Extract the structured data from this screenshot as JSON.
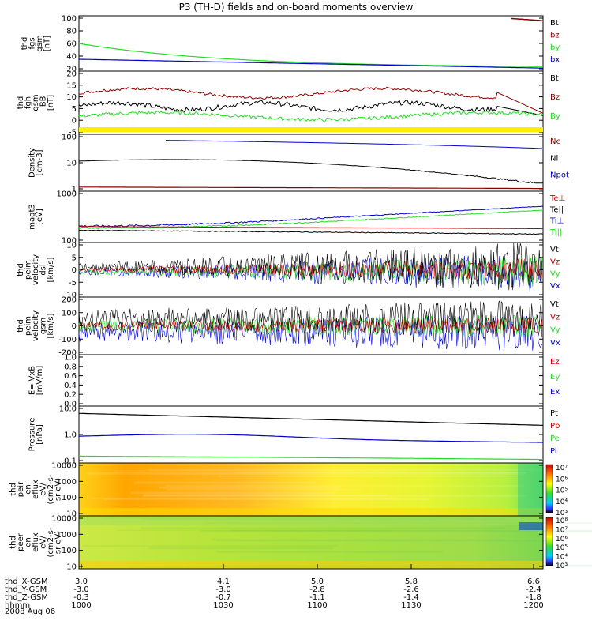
{
  "title": "P3 (TH-D) fields and on-board moments overview",
  "colors": {
    "black": "#000000",
    "red": "#c00000",
    "dred": "#8b0000",
    "green": "#22dd22",
    "blue": "#0000cc",
    "yellow": "#ffee00"
  },
  "panels": [
    {
      "id": "fgs",
      "ylabel": [
        "thd",
        "fgs",
        "gsm",
        "[nT]"
      ],
      "ticks": [
        "100",
        "80",
        "60",
        "40",
        "20"
      ],
      "legend": [
        {
          "t": "Bt",
          "c": "black"
        },
        {
          "t": "bz",
          "c": "dred"
        },
        {
          "t": "by",
          "c": "green"
        },
        {
          "t": "bx",
          "c": "blue"
        }
      ]
    },
    {
      "id": "fgh",
      "ylabel": [
        "thd",
        "fgh",
        "gsm",
        "-BB",
        "[nT]"
      ],
      "ticks": [
        "20",
        "15",
        "10",
        "5",
        "0",
        "-5"
      ],
      "legend": [
        {
          "t": "Bt",
          "c": "black"
        },
        {
          "t": "Bz",
          "c": "dred"
        },
        {
          "t": "By",
          "c": "green"
        }
      ]
    },
    {
      "id": "dens",
      "ylabel": [
        "Density",
        "[cm-3]"
      ],
      "ticks": [
        "100",
        "10",
        "1"
      ],
      "legend": [
        {
          "t": "Ne",
          "c": "dred"
        },
        {
          "t": "Ni",
          "c": "black"
        },
        {
          "t": "Npot",
          "c": "blue"
        }
      ]
    },
    {
      "id": "temp",
      "ylabel": [
        "magt3",
        "[eV]"
      ],
      "ticks": [
        "1000",
        "100"
      ],
      "legend": [
        {
          "t": "Te⊥",
          "c": "red"
        },
        {
          "t": "Te||",
          "c": "black"
        },
        {
          "t": "Ti⊥",
          "c": "blue"
        },
        {
          "t": "Ti||",
          "c": "green"
        }
      ]
    },
    {
      "id": "velE",
      "ylabel": [
        "thd",
        "peim",
        "velocity",
        "dsl",
        "[km/s]"
      ],
      "ticks": [
        "10",
        "5",
        "0",
        "-5",
        "-10"
      ],
      "legend": [
        {
          "t": "Vt",
          "c": "black"
        },
        {
          "t": "Vz",
          "c": "red"
        },
        {
          "t": "Vy",
          "c": "green"
        },
        {
          "t": "Vx",
          "c": "blue"
        }
      ]
    },
    {
      "id": "velI",
      "ylabel": [
        "thd",
        "peim",
        "velocity",
        "gsm",
        "[km/s]"
      ],
      "ticks": [
        "200",
        "100",
        "0",
        "-100",
        "-200"
      ],
      "legend": [
        {
          "t": "Vt",
          "c": "black"
        },
        {
          "t": "Vz",
          "c": "red"
        },
        {
          "t": "Vy",
          "c": "green"
        },
        {
          "t": "Vx",
          "c": "blue"
        }
      ]
    },
    {
      "id": "efld",
      "ylabel": [
        "E=-VxB",
        "[mV/m]"
      ],
      "ticks": [
        "1.0",
        "0.8",
        "0.6",
        "0.4",
        "0.2",
        "0.0"
      ],
      "legend": [
        {
          "t": "Ez",
          "c": "red"
        },
        {
          "t": "Ey",
          "c": "green"
        },
        {
          "t": "Ex",
          "c": "blue"
        }
      ]
    },
    {
      "id": "press",
      "ylabel": [
        "Pressure",
        "[nPa]"
      ],
      "ticks": [
        "10.0",
        "1.0",
        "0.1"
      ],
      "legend": [
        {
          "t": "Pt",
          "c": "black"
        },
        {
          "t": "Pb",
          "c": "red"
        },
        {
          "t": "Pe",
          "c": "green"
        },
        {
          "t": "Pi",
          "c": "blue"
        }
      ]
    },
    {
      "id": "ispec",
      "ylabel": [
        "thd",
        "peir",
        "en",
        "eflux",
        "eV/",
        "(cm2-s-",
        "sr-eV)"
      ],
      "ticks": [
        "10000",
        "1000",
        "100",
        "10"
      ],
      "colorbar": [
        "10⁷",
        "10⁶",
        "10⁵",
        "10⁴",
        "10³"
      ]
    },
    {
      "id": "espec",
      "ylabel": [
        "thd",
        "peer",
        "en",
        "eflux",
        "eV/",
        "(cm2-s-",
        "sr-eV)"
      ],
      "ticks": [
        "10000",
        "1000",
        "100",
        "10"
      ],
      "colorbar": [
        "10⁸",
        "10⁷",
        "10⁶",
        "10⁵",
        "10⁴",
        "10³"
      ]
    }
  ],
  "xaxis": {
    "rows": [
      {
        "label": "thd_X-GSM",
        "values": [
          "3.0",
          "4.1",
          "5.0",
          "5.8",
          "6.6"
        ]
      },
      {
        "label": "thd_Y-GSM",
        "values": [
          "-3.0",
          "-3.0",
          "-2.8",
          "-2.6",
          "-2.4"
        ]
      },
      {
        "label": "thd_Z-GSM",
        "values": [
          "-0.3",
          "-0.7",
          "-1.1",
          "-1.4",
          "-1.8"
        ]
      },
      {
        "label": "hhmm",
        "values": [
          "1000",
          "1030",
          "1100",
          "1130",
          "1200"
        ]
      }
    ],
    "date": "2008 Aug 06"
  },
  "chart_data": {
    "type": "line",
    "title": "P3 (TH-D) fields and on-board moments overview",
    "x_time_hhmm": [
      "1000",
      "1030",
      "1100",
      "1130",
      "1200"
    ],
    "series": [
      {
        "panel": "fgs",
        "name": "bx",
        "values": [
          35,
          32,
          28,
          24,
          21
        ]
      },
      {
        "panel": "fgs",
        "name": "by",
        "values": [
          58,
          30,
          15,
          8,
          5
        ]
      },
      {
        "panel": "fgs",
        "name": "bz",
        "values": [
          null,
          null,
          null,
          null,
          97
        ]
      },
      {
        "panel": "fgh",
        "name": "Bz",
        "values": [
          11,
          12,
          13,
          14,
          3
        ]
      },
      {
        "panel": "fgh",
        "name": "Bt",
        "values": [
          6,
          5,
          5,
          6,
          2
        ]
      },
      {
        "panel": "fgh",
        "name": "By",
        "values": [
          1,
          2,
          1,
          1,
          0
        ]
      },
      {
        "panel": "dens",
        "name": "Npot",
        "values": [
          200,
          170,
          130,
          100,
          60
        ]
      },
      {
        "panel": "dens",
        "name": "Ni",
        "values": [
          13,
          18,
          8,
          3,
          1.2
        ]
      },
      {
        "panel": "dens",
        "name": "Ne",
        "values": [
          0.6,
          0.6,
          0.55,
          0.5,
          0.5
        ]
      },
      {
        "panel": "temp",
        "name": "Ti⊥",
        "values": [
          300,
          320,
          400,
          700,
          1000
        ]
      },
      {
        "panel": "temp",
        "name": "Ti||",
        "values": [
          250,
          250,
          300,
          550,
          700
        ]
      },
      {
        "panel": "temp",
        "name": "Te||",
        "values": [
          200,
          190,
          180,
          160,
          150
        ]
      },
      {
        "panel": "press",
        "name": "Pt",
        "values": [
          7,
          5,
          3.5,
          2.5,
          1.8
        ]
      },
      {
        "panel": "press",
        "name": "Pi",
        "values": [
          0.4,
          0.5,
          0.3,
          0.2,
          0.15
        ]
      },
      {
        "panel": "press",
        "name": "Pe",
        "values": [
          0.03,
          0.03,
          0.025,
          0.02,
          0.02
        ]
      }
    ]
  }
}
